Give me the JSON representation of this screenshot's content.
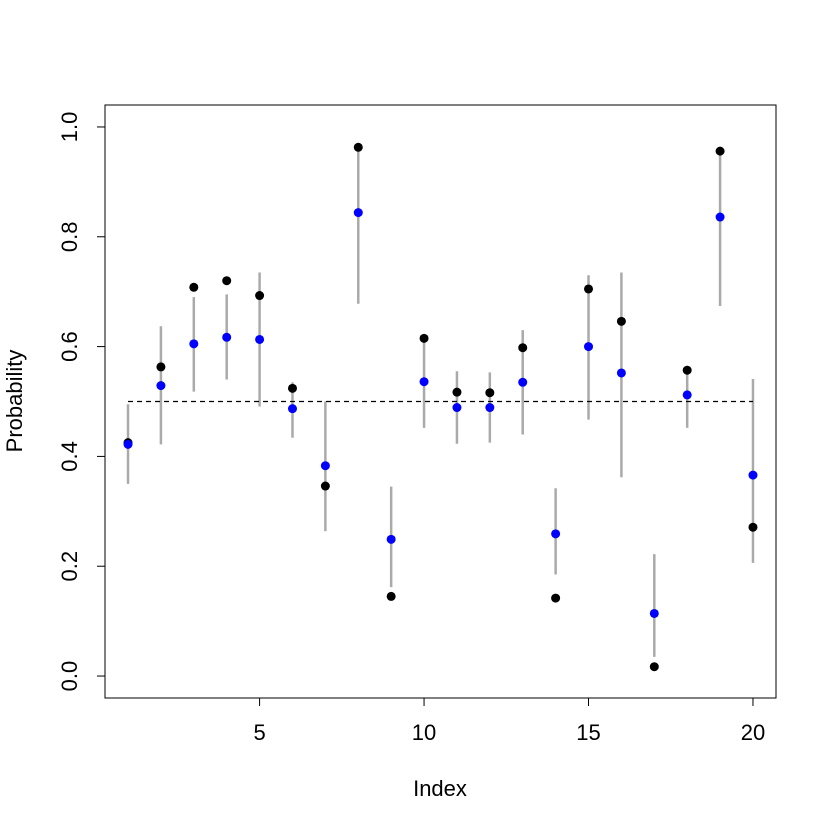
{
  "chart_data": {
    "type": "scatter",
    "xlabel": "Index",
    "ylabel": "Probability",
    "xlim": [
      0.3,
      20.7
    ],
    "ylim": [
      -0.04,
      1.04
    ],
    "x_ticks": [
      5,
      10,
      15,
      20
    ],
    "x_tick_labels": [
      "5",
      "10",
      "15",
      "20"
    ],
    "y_ticks": [
      0.0,
      0.2,
      0.4,
      0.6,
      0.8,
      1.0
    ],
    "y_tick_labels": [
      "0.0",
      "0.2",
      "0.4",
      "0.6",
      "0.8",
      "1.0"
    ],
    "reference_line": {
      "y": 0.5,
      "x_from": 1,
      "x_to": 20,
      "style": "dashed"
    },
    "colors": {
      "observed": "#000000",
      "estimate": "#0000ff",
      "interval": "#aaaaaa",
      "reference": "#000000"
    },
    "index": [
      1,
      2,
      3,
      4,
      5,
      6,
      7,
      8,
      9,
      10,
      11,
      12,
      13,
      14,
      15,
      16,
      17,
      18,
      19,
      20
    ],
    "observed": [
      0.425,
      0.563,
      0.708,
      0.72,
      0.693,
      0.524,
      0.346,
      0.963,
      0.145,
      0.615,
      0.517,
      0.516,
      0.598,
      0.142,
      0.705,
      0.646,
      0.017,
      0.557,
      0.956,
      0.271
    ],
    "estimate": [
      0.422,
      0.529,
      0.605,
      0.617,
      0.613,
      0.487,
      0.383,
      0.844,
      0.249,
      0.536,
      0.489,
      0.489,
      0.535,
      0.259,
      0.6,
      0.552,
      0.114,
      0.512,
      0.836,
      0.366
    ],
    "lower": [
      0.35,
      0.422,
      0.518,
      0.54,
      0.491,
      0.434,
      0.264,
      0.678,
      0.162,
      0.452,
      0.423,
      0.425,
      0.44,
      0.185,
      0.467,
      0.362,
      0.035,
      0.452,
      0.674,
      0.206
    ],
    "upper": [
      0.495,
      0.637,
      0.69,
      0.695,
      0.735,
      0.535,
      0.5,
      0.958,
      0.345,
      0.615,
      0.555,
      0.553,
      0.63,
      0.342,
      0.73,
      0.735,
      0.222,
      0.565,
      0.952,
      0.541
    ]
  }
}
